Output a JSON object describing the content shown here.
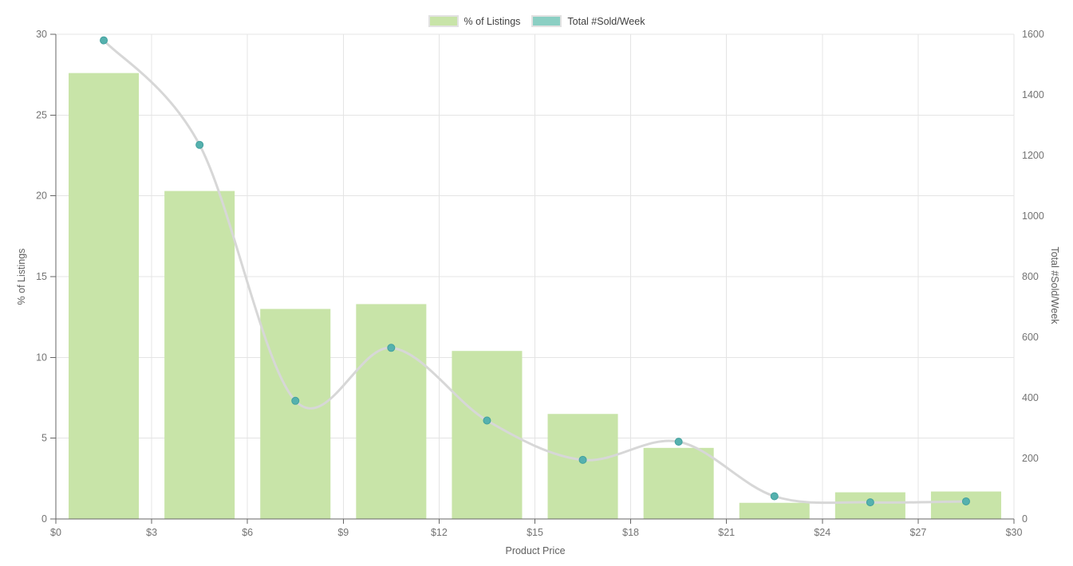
{
  "legend": {
    "items": [
      {
        "label": "% of Listings",
        "swatch_color": "#c8e4a8",
        "swatch_border": "#e2e2e2"
      },
      {
        "label": "Total #Sold/Week",
        "swatch_color": "#8bcfc3",
        "swatch_border": "#e2e2e2"
      }
    ]
  },
  "chart_data": {
    "type": "bar",
    "subtype": "dual-axis histogram with smoothed line overlay",
    "title": "",
    "xlabel": "Product Price",
    "xlim": [
      0,
      30
    ],
    "x_tick_values": [
      0,
      3,
      6,
      9,
      12,
      15,
      18,
      21,
      24,
      27,
      30
    ],
    "x_tick_labels": [
      "$0",
      "$3",
      "$6",
      "$9",
      "$12",
      "$15",
      "$18",
      "$21",
      "$24",
      "$27",
      "$30"
    ],
    "bin_width": 3,
    "bin_centers": [
      1.5,
      4.5,
      7.5,
      10.5,
      13.5,
      16.5,
      19.5,
      22.5,
      25.5,
      28.5
    ],
    "left_axis": {
      "label": "% of Listings",
      "lim": [
        0,
        30
      ],
      "ticks": [
        0,
        5,
        10,
        15,
        20,
        25,
        30
      ]
    },
    "right_axis": {
      "label": "Total #Sold/Week",
      "lim": [
        0,
        1600
      ],
      "ticks": [
        0,
        200,
        400,
        600,
        800,
        1000,
        1200,
        1400,
        1600
      ]
    },
    "grid": true,
    "legend_position": "top-center",
    "series": [
      {
        "name": "% of Listings",
        "type": "bar",
        "axis": "left",
        "color": "#c8e4a8",
        "values": [
          27.6,
          20.3,
          13.0,
          13.3,
          10.4,
          6.5,
          4.4,
          1.0,
          1.65,
          1.7
        ]
      },
      {
        "name": "Total #Sold/Week",
        "type": "line",
        "axis": "right",
        "line_color": "#d7d7d7",
        "marker_color": "#55b1ae",
        "marker_stroke": "#42a09e",
        "values": [
          1580,
          1235,
          390,
          565,
          325,
          195,
          255,
          75,
          55,
          58
        ]
      }
    ]
  }
}
